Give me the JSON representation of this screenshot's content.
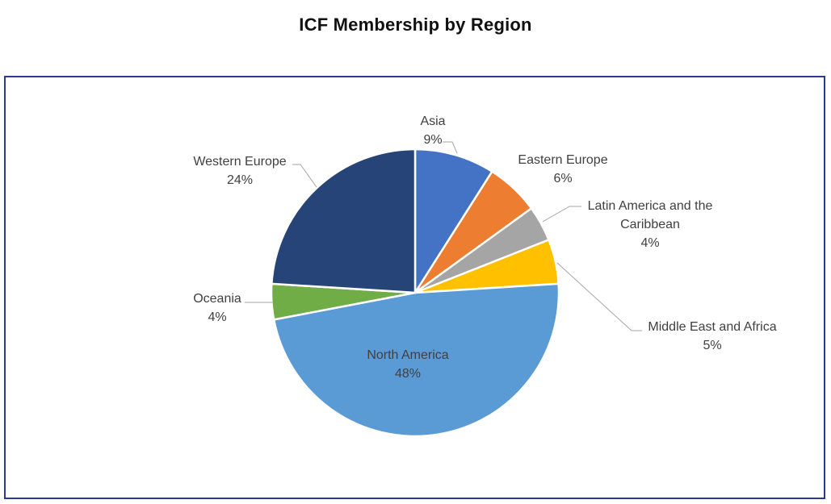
{
  "chart_data": {
    "type": "pie",
    "title": "ICF Membership by Region",
    "slices": [
      {
        "label": "Asia",
        "pct_label": "9%",
        "value": 9,
        "color": "#4472c4"
      },
      {
        "label": "Eastern Europe",
        "pct_label": "6%",
        "value": 6,
        "color": "#ed7d31"
      },
      {
        "label": "Latin America and the Caribbean",
        "label_lines": [
          "Latin America and the",
          "Caribbean"
        ],
        "pct_label": "4%",
        "value": 4,
        "color": "#a5a5a5"
      },
      {
        "label": "Middle East and Africa",
        "pct_label": "5%",
        "value": 5,
        "color": "#ffc000"
      },
      {
        "label": "North America",
        "pct_label": "48%",
        "value": 48,
        "color": "#5b9bd5"
      },
      {
        "label": "Oceania",
        "pct_label": "4%",
        "value": 4,
        "color": "#70ad47"
      },
      {
        "label": "Western Europe",
        "pct_label": "24%",
        "value": 24,
        "color": "#264478"
      }
    ],
    "legend": "none"
  }
}
